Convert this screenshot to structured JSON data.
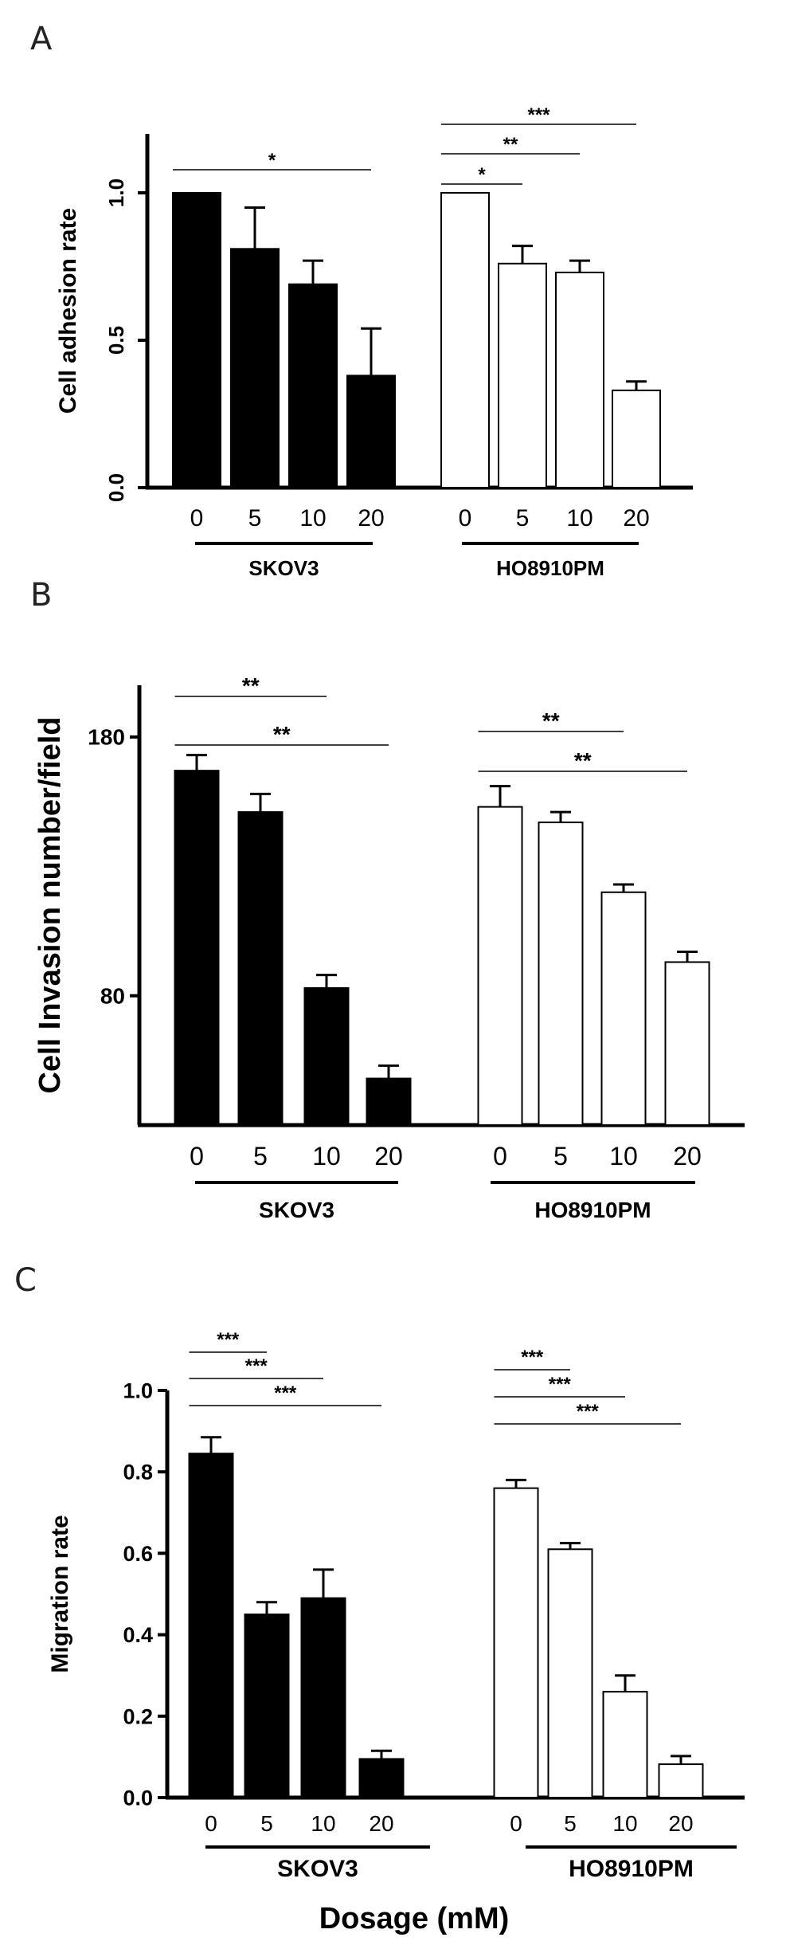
{
  "chart_data": [
    {
      "type": "bar",
      "panel": "A",
      "ylabel": "Cell adhesion rate",
      "ylim": [
        0.0,
        1.2
      ],
      "yticks": [
        "0.0",
        "0.5",
        "1.0"
      ],
      "groups": [
        {
          "name": "SKOV3",
          "fill": "#000000",
          "categories": [
            "0",
            "5",
            "10",
            "20"
          ],
          "values": [
            1.0,
            0.81,
            0.69,
            0.38
          ],
          "errors": [
            0.0,
            0.14,
            0.08,
            0.16
          ]
        },
        {
          "name": "HO8910PM",
          "fill": "#ffffff",
          "categories": [
            "0",
            "5",
            "10",
            "20"
          ],
          "values": [
            1.0,
            0.76,
            0.73,
            0.33
          ],
          "errors": [
            0.0,
            0.06,
            0.04,
            0.03
          ]
        }
      ],
      "significance": [
        {
          "group": 0,
          "from": 0,
          "to": 3,
          "label": "*"
        },
        {
          "group": 1,
          "from": 0,
          "to": 1,
          "label": "*"
        },
        {
          "group": 1,
          "from": 0,
          "to": 2,
          "label": "**"
        },
        {
          "group": 1,
          "from": 0,
          "to": 3,
          "label": "***"
        }
      ]
    },
    {
      "type": "bar",
      "panel": "B",
      "ylabel": "Cell Invasion number/field",
      "ylim": [
        30,
        200
      ],
      "yticks": [
        "80",
        "180"
      ],
      "groups": [
        {
          "name": "SKOV3",
          "fill": "#000000",
          "categories": [
            "0",
            "5",
            "10",
            "20"
          ],
          "values": [
            167,
            151,
            83,
            48
          ],
          "errors": [
            6,
            7,
            5,
            5
          ]
        },
        {
          "name": "HO8910PM",
          "fill": "#ffffff",
          "categories": [
            "0",
            "5",
            "10",
            "20"
          ],
          "values": [
            153,
            147,
            120,
            93
          ],
          "errors": [
            8,
            4,
            3,
            4
          ]
        }
      ],
      "significance": [
        {
          "group": 0,
          "from": 0,
          "to": 2,
          "label": "**"
        },
        {
          "group": 0,
          "from": 0,
          "to": 3,
          "label": "**"
        },
        {
          "group": 1,
          "from": 0,
          "to": 2,
          "label": "**"
        },
        {
          "group": 1,
          "from": 0,
          "to": 3,
          "label": "**"
        }
      ]
    },
    {
      "type": "bar",
      "panel": "C",
      "ylabel": "Migration rate",
      "xlabel": "Dosage (mM)",
      "ylim": [
        0.0,
        1.0
      ],
      "yticks": [
        "0.0",
        "0.2",
        "0.4",
        "0.6",
        "0.8",
        "1.0"
      ],
      "groups": [
        {
          "name": "SKOV3",
          "fill": "#000000",
          "categories": [
            "0",
            "5",
            "10",
            "20"
          ],
          "values": [
            0.845,
            0.45,
            0.49,
            0.095
          ],
          "errors": [
            0.04,
            0.03,
            0.07,
            0.02
          ]
        },
        {
          "name": "HO8910PM",
          "fill": "#ffffff",
          "categories": [
            "0",
            "5",
            "10",
            "20"
          ],
          "values": [
            0.76,
            0.61,
            0.26,
            0.082
          ],
          "errors": [
            0.02,
            0.015,
            0.04,
            0.02
          ]
        }
      ],
      "significance": [
        {
          "group": 0,
          "from": 0,
          "to": 1,
          "label": "***"
        },
        {
          "group": 0,
          "from": 0,
          "to": 2,
          "label": "***"
        },
        {
          "group": 0,
          "from": 0,
          "to": 3,
          "label": "***"
        },
        {
          "group": 1,
          "from": 0,
          "to": 1,
          "label": "***"
        },
        {
          "group": 1,
          "from": 0,
          "to": 2,
          "label": "***"
        },
        {
          "group": 1,
          "from": 0,
          "to": 3,
          "label": "***"
        }
      ]
    }
  ]
}
